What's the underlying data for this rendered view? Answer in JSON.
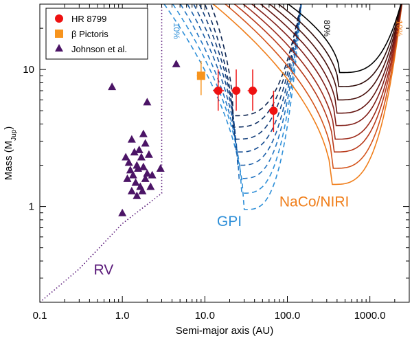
{
  "chart_data": {
    "type": "scatter",
    "title": "",
    "xlabel": "Semi-major axis (AU)",
    "ylabel_main": "Mass (M",
    "ylabel_sub": "Jup",
    "ylabel_end": ")",
    "xscale": "log",
    "yscale": "log",
    "xlim": [
      0.1,
      3000
    ],
    "ylim": [
      0.2,
      30
    ],
    "x_ticks": [
      {
        "value": 0.1,
        "label": "0.1"
      },
      {
        "value": 1,
        "label": "1.0"
      },
      {
        "value": 10,
        "label": "10.0"
      },
      {
        "value": 100,
        "label": "100.0"
      },
      {
        "value": 1000,
        "label": "1000.0"
      }
    ],
    "y_ticks": [
      {
        "value": 1,
        "label": "1"
      },
      {
        "value": 10,
        "label": "10"
      }
    ],
    "legend": {
      "position": "top-left",
      "entries": [
        {
          "label": "HR 8799",
          "marker": "circle",
          "color": "#ee1111"
        },
        {
          "label": "β Pictoris",
          "marker": "square",
          "color": "#f7941d"
        },
        {
          "label": "Johnson et al.",
          "marker": "triangle",
          "color": "#4b1466"
        }
      ]
    },
    "series": [
      {
        "name": "HR 8799",
        "marker": "circle",
        "color": "#ee1111",
        "points": [
          {
            "x": 14.5,
            "y": 7,
            "xerr": [
              12.5,
              17
            ],
            "yerr": [
              5,
              10
            ]
          },
          {
            "x": 24,
            "y": 7,
            "xerr": [
              21,
              27
            ],
            "yerr": [
              5,
              10
            ]
          },
          {
            "x": 38,
            "y": 7,
            "xerr": [
              33,
              43
            ],
            "yerr": [
              5,
              10
            ]
          },
          {
            "x": 68,
            "y": 5,
            "xerr": [
              60,
              76
            ],
            "yerr": [
              3.5,
              7
            ]
          }
        ]
      },
      {
        "name": "β Pictoris",
        "marker": "square",
        "color": "#f7941d",
        "points": [
          {
            "x": 9,
            "y": 9,
            "xerr": [
              8,
              10
            ],
            "yerr": [
              6.5,
              11.5
            ]
          }
        ]
      },
      {
        "name": "Johnson et al.",
        "marker": "triangle",
        "color": "#4b1466",
        "points": [
          {
            "x": 0.75,
            "y": 7.5
          },
          {
            "x": 4.5,
            "y": 11
          },
          {
            "x": 2.0,
            "y": 5.8
          },
          {
            "x": 1.0,
            "y": 0.9
          },
          {
            "x": 2.9,
            "y": 1.9
          },
          {
            "x": 1.8,
            "y": 3.4
          },
          {
            "x": 1.3,
            "y": 3.1
          },
          {
            "x": 1.1,
            "y": 2.3
          },
          {
            "x": 1.4,
            "y": 2.5
          },
          {
            "x": 1.6,
            "y": 2.6
          },
          {
            "x": 1.9,
            "y": 2.9
          },
          {
            "x": 1.2,
            "y": 2.1
          },
          {
            "x": 1.5,
            "y": 2.0
          },
          {
            "x": 1.7,
            "y": 2.3
          },
          {
            "x": 2.1,
            "y": 2.4
          },
          {
            "x": 1.25,
            "y": 1.85
          },
          {
            "x": 1.35,
            "y": 1.7
          },
          {
            "x": 1.55,
            "y": 1.9
          },
          {
            "x": 1.8,
            "y": 1.95
          },
          {
            "x": 2.0,
            "y": 1.75
          },
          {
            "x": 1.15,
            "y": 1.6
          },
          {
            "x": 1.45,
            "y": 1.5
          },
          {
            "x": 1.65,
            "y": 1.4
          },
          {
            "x": 1.9,
            "y": 1.6
          },
          {
            "x": 2.3,
            "y": 1.7
          },
          {
            "x": 1.3,
            "y": 1.3
          },
          {
            "x": 1.5,
            "y": 1.2
          },
          {
            "x": 1.75,
            "y": 1.3
          },
          {
            "x": 2.2,
            "y": 1.4
          }
        ]
      }
    ],
    "limits": [
      {
        "name": "RV",
        "color": "#5a1a7a",
        "style": "dotted",
        "points": [
          [
            0.1,
            0.2
          ],
          [
            0.3,
            0.35
          ],
          [
            1.0,
            0.75
          ],
          [
            3.0,
            1.25
          ],
          [
            3.0,
            30
          ]
        ]
      }
    ],
    "contour_sets": [
      {
        "name": "GPI",
        "style": "dashed",
        "x_right": 150,
        "levels": [
          {
            "xmin": 2.8,
            "xc": 30,
            "ymin": 0.95,
            "color": "#2e8fd8"
          },
          {
            "xmin": 3.6,
            "xc": 28,
            "ymin": 1.25,
            "color": "#2e8fd8"
          },
          {
            "xmin": 4.5,
            "xc": 26,
            "ymin": 1.6,
            "color": "#2274c2"
          },
          {
            "xmin": 5.5,
            "xc": 25,
            "ymin": 2.0,
            "color": "#1a5ea8"
          },
          {
            "xmin": 6.6,
            "xc": 24,
            "ymin": 2.5,
            "color": "#154c90"
          },
          {
            "xmin": 7.8,
            "xc": 23,
            "ymin": 3.1,
            "color": "#123d7a"
          },
          {
            "xmin": 9.2,
            "xc": 22,
            "ymin": 3.8,
            "color": "#0f3064"
          },
          {
            "xmin": 11,
            "xc": 22,
            "ymin": 4.6,
            "color": "#0c2450"
          }
        ]
      },
      {
        "name": "NaCo/NIRI",
        "style": "solid",
        "x_right": 2500,
        "levels": [
          {
            "xmin": 10,
            "xc": 350,
            "ymin": 1.45,
            "color": "#f07e1a"
          },
          {
            "xmin": 14,
            "xc": 360,
            "ymin": 1.9,
            "color": "#d4531a"
          },
          {
            "xmin": 18,
            "xc": 370,
            "ymin": 2.5,
            "color": "#b8391a"
          },
          {
            "xmin": 23,
            "xc": 380,
            "ymin": 3.1,
            "color": "#9c2818"
          },
          {
            "xmin": 29,
            "xc": 390,
            "ymin": 3.9,
            "color": "#801c16"
          },
          {
            "xmin": 37,
            "xc": 400,
            "ymin": 4.8,
            "color": "#641410"
          },
          {
            "xmin": 47,
            "xc": 410,
            "ymin": 6.0,
            "color": "#48100c"
          },
          {
            "xmin": 60,
            "xc": 420,
            "ymin": 7.5,
            "color": "#2e0a08"
          },
          {
            "xmin": 78,
            "xc": 430,
            "ymin": 9.5,
            "color": "#000000"
          }
        ]
      }
    ],
    "annotations": [
      {
        "name": "label-rv",
        "text": "RV",
        "x": 0.45,
        "y": 0.32,
        "color": "#5a1a7a",
        "kind": "region"
      },
      {
        "name": "label-gpi",
        "text": "GPI",
        "x": 14,
        "y": 0.72,
        "color": "#2e8fd8",
        "kind": "region"
      },
      {
        "name": "label-naco",
        "text": "NaCo/NIRI",
        "x": 80,
        "y": 1.0,
        "color": "#f07e1a",
        "kind": "region"
      },
      {
        "name": "label-gpi-10",
        "text": "10%",
        "x": 4.2,
        "y": 22,
        "color": "#2e8fd8",
        "kind": "contour"
      },
      {
        "name": "label-naco-10",
        "text": "10%",
        "x": 2100,
        "y": 23,
        "color": "#f07e1a",
        "kind": "contour"
      },
      {
        "name": "label-naco-80",
        "text": "80%",
        "x": 280,
        "y": 23,
        "color": "#000000",
        "kind": "contour"
      }
    ]
  }
}
